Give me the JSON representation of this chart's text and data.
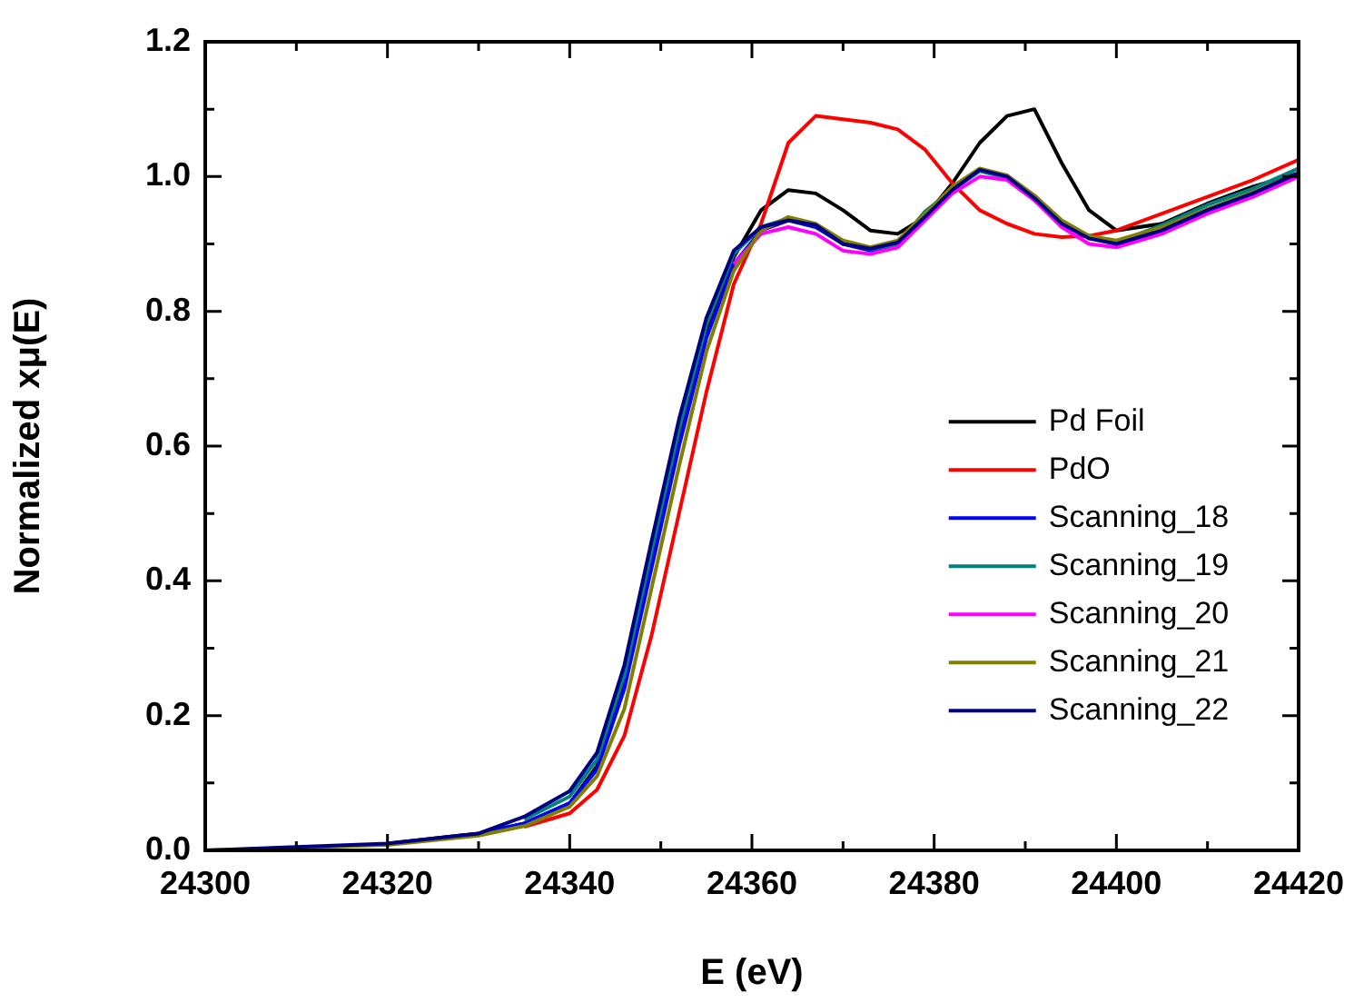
{
  "chart_data": {
    "type": "line",
    "xlabel": "E (eV)",
    "ylabel": "Normalized xμ(E)",
    "x": [
      24300,
      24310,
      24320,
      24330,
      24335,
      24340,
      24343,
      24346,
      24349,
      24352,
      24355,
      24358,
      24361,
      24364,
      24367,
      24370,
      24373,
      24376,
      24379,
      24382,
      24385,
      24388,
      24391,
      24394,
      24397,
      24400,
      24405,
      24410,
      24415,
      24420
    ],
    "xlim": [
      24300,
      24420
    ],
    "xticks": [
      24300,
      {
        "value": 24310,
        "label": null
      },
      24320,
      {
        "value": 24330,
        "label": null
      },
      24340,
      {
        "value": 24350,
        "label": null
      },
      24360,
      {
        "value": 24370,
        "label": null
      },
      24380,
      {
        "value": 24390,
        "label": null
      },
      24400,
      {
        "value": 24410,
        "label": null
      },
      24420
    ],
    "ylim": [
      0,
      1.2
    ],
    "yticks": [
      {
        "value": 0,
        "label": "0.0"
      },
      {
        "value": 0.1,
        "label": null
      },
      {
        "value": 0.2,
        "label": "0.2"
      },
      {
        "value": 0.3,
        "label": null
      },
      {
        "value": 0.4,
        "label": "0.4"
      },
      {
        "value": 0.5,
        "label": null
      },
      {
        "value": 0.6,
        "label": "0.6"
      },
      {
        "value": 0.7,
        "label": null
      },
      {
        "value": 0.8,
        "label": "0.8"
      },
      {
        "value": 0.9,
        "label": null
      },
      {
        "value": 1.0,
        "label": "1.0"
      },
      {
        "value": 1.1,
        "label": null
      },
      {
        "value": 1.2,
        "label": "1.2"
      }
    ],
    "grid": false,
    "legend": "right",
    "marker": "none",
    "line_style": "solid",
    "series": [
      {
        "name": "Pd Foil",
        "color": "#000000",
        "values": [
          null,
          null,
          0.01,
          0.025,
          0.04,
          0.07,
          0.125,
          0.25,
          0.43,
          0.61,
          0.77,
          0.88,
          0.95,
          0.98,
          0.975,
          0.95,
          0.92,
          0.915,
          0.94,
          0.99,
          1.05,
          1.09,
          1.1,
          1.02,
          0.95,
          0.92,
          0.93,
          0.96,
          0.985,
          1.005
        ]
      },
      {
        "name": "PdO",
        "color": "#ff0000",
        "values": [
          null,
          null,
          null,
          null,
          0.035,
          0.055,
          0.09,
          0.17,
          0.32,
          0.5,
          0.68,
          0.84,
          0.93,
          1.05,
          1.09,
          1.085,
          1.08,
          1.07,
          1.04,
          0.99,
          0.95,
          0.93,
          0.915,
          0.91,
          0.912,
          0.92,
          0.945,
          0.97,
          0.995,
          1.025
        ]
      },
      {
        "name": "Scanning_18",
        "color": "#0000ff",
        "values": [
          null,
          null,
          null,
          0.025,
          0.04,
          0.07,
          0.12,
          0.24,
          0.42,
          0.6,
          0.76,
          0.87,
          0.92,
          0.935,
          0.925,
          0.9,
          0.89,
          0.9,
          null,
          null,
          null,
          null,
          null,
          null,
          null,
          null,
          null,
          null,
          null,
          null
        ]
      },
      {
        "name": "Scanning_19",
        "color": "#008080",
        "values": [
          null,
          null,
          null,
          null,
          0.046,
          0.08,
          0.135,
          0.26,
          0.445,
          0.625,
          0.78,
          0.885,
          0.925,
          0.938,
          0.928,
          0.902,
          0.892,
          0.9,
          0.948,
          0.98,
          1.008,
          0.998,
          0.965,
          0.93,
          0.91,
          0.902,
          0.928,
          0.958,
          0.982,
          1.012
        ]
      },
      {
        "name": "Scanning_20",
        "color": "#ff00ff",
        "values": [
          null,
          null,
          null,
          null,
          null,
          null,
          null,
          null,
          null,
          null,
          null,
          0.87,
          0.915,
          0.925,
          0.915,
          0.89,
          0.885,
          0.895,
          0.935,
          0.975,
          1.0,
          0.995,
          0.965,
          0.925,
          0.9,
          0.895,
          0.915,
          0.945,
          0.97,
          1.0
        ]
      },
      {
        "name": "Scanning_21",
        "color": "#808000",
        "values": [
          0,
          0.004,
          0.008,
          0.022,
          0.036,
          0.065,
          0.11,
          0.21,
          0.39,
          0.57,
          0.74,
          0.86,
          0.92,
          0.94,
          0.93,
          0.905,
          0.895,
          0.905,
          0.945,
          0.985,
          1.012,
          1.002,
          0.972,
          0.935,
          0.912,
          0.905,
          0.925,
          0.952,
          0.977,
          1.005
        ]
      },
      {
        "name": "Scanning_22",
        "color": "#000080",
        "values": [
          0,
          0.005,
          0.01,
          0.025,
          0.05,
          0.088,
          0.145,
          0.275,
          0.46,
          0.64,
          0.79,
          0.89,
          0.925,
          0.935,
          0.928,
          0.9,
          0.893,
          0.902,
          0.94,
          0.98,
          1.01,
          1.0,
          0.968,
          0.93,
          0.908,
          0.9,
          0.92,
          0.95,
          0.975,
          1.005
        ]
      }
    ]
  }
}
